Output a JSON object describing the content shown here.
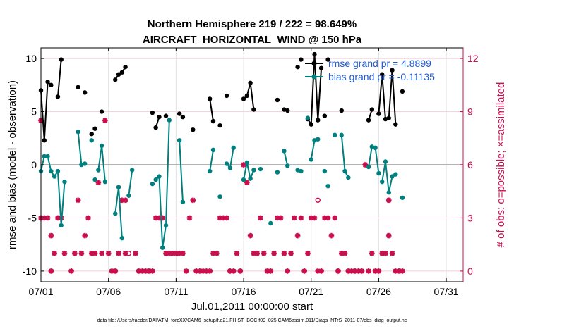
{
  "chart_data": {
    "type": "line",
    "title": "Northern Hemisphere 219 / 222 = 98.649%",
    "subtitle": "AIRCRAFT_HORIZONTAL_WIND @ 150 hPa",
    "xlabel": "Jul.01,2011 00:00:00 start",
    "ylabel": "rmse and bias (model - observation)",
    "y2label": "# of obs: o=possible; ×=assimilated",
    "xlim": [
      0,
      31.25
    ],
    "ylim": [
      -11,
      11
    ],
    "y2lim": [
      -0.6,
      12.6
    ],
    "xticks": [
      0,
      5,
      10,
      15,
      20,
      25,
      30
    ],
    "xtick_labels": [
      "07/01",
      "07/06",
      "07/11",
      "07/16",
      "07/21",
      "07/26",
      "07/31"
    ],
    "yticks": [
      10,
      5,
      0,
      -5,
      -10
    ],
    "ytick_labels": [
      "10",
      "5",
      "0",
      "-5",
      "-10"
    ],
    "y2ticks": [
      12,
      9,
      6,
      3,
      0
    ],
    "y2tick_labels": [
      "12",
      "9",
      "6",
      "3",
      "0"
    ],
    "grid": true,
    "zero_line": 0,
    "legend_position": "top-right",
    "colors": {
      "rmse": "#000000",
      "bias": "#007f7f",
      "count": "#c8104e",
      "legend_text": "#1f5bd8",
      "zero": "#b4b4b4"
    },
    "series": [
      {
        "name": "rmse grand pr = 4.8899",
        "axis": "left",
        "segments": [
          [
            [
              0,
              7.0
            ],
            [
              0.25,
              2.3
            ],
            [
              0.5,
              7.8
            ],
            [
              0.75,
              7.5
            ]
          ],
          [
            [
              1.25,
              6.4
            ],
            [
              1.5,
              9.9
            ]
          ],
          [
            [
              2.75,
              7.3
            ]
          ],
          [
            [
              3.25,
              6.8
            ]
          ],
          [
            [
              3.75,
              2.9
            ]
          ],
          [
            [
              4.0,
              3.4
            ]
          ],
          [
            [
              4.5,
              5.0
            ]
          ],
          [
            [
              5.5,
              8.0
            ],
            [
              5.75,
              8.5
            ],
            [
              6.0,
              8.7
            ],
            [
              6.25,
              9.2
            ]
          ],
          [
            [
              8.25,
              4.9
            ]
          ],
          [
            [
              8.5,
              3.5
            ],
            [
              8.75,
              4.5
            ]
          ],
          [
            [
              9.25,
              4.6
            ]
          ],
          [
            [
              10.25,
              4.8
            ]
          ],
          [
            [
              10.5,
              4.5
            ]
          ],
          [
            [
              11.25,
              3.3
            ]
          ],
          [
            [
              12.5,
              6.2
            ],
            [
              12.75,
              4.1
            ]
          ],
          [
            [
              13.25,
              3.7
            ]
          ],
          [
            [
              13.75,
              6.5
            ]
          ],
          [
            [
              15.0,
              6.2
            ],
            [
              15.25,
              6.5
            ],
            [
              15.5,
              7.7
            ],
            [
              15.75,
              5.2
            ]
          ],
          [
            [
              17.5,
              6.1
            ]
          ],
          [
            [
              18.0,
              5.2
            ]
          ],
          [
            [
              18.25,
              5.1
            ]
          ],
          [
            [
              19.0,
              9.2
            ]
          ],
          [
            [
              19.25,
              9.9
            ]
          ],
          [
            [
              19.75,
              4.3
            ],
            [
              20.0,
              3.8
            ],
            [
              20.25,
              10.4
            ],
            [
              20.5,
              4.2
            ],
            [
              20.75,
              9.1
            ]
          ],
          [
            [
              21.0,
              4.6
            ]
          ],
          [
            [
              21.25,
              9.9
            ]
          ],
          [
            [
              22.25,
              5.1
            ]
          ],
          [
            [
              24.25,
              4.2
            ],
            [
              24.5,
              5.2
            ]
          ],
          [
            [
              25.0,
              4.8
            ],
            [
              25.25,
              8.5
            ],
            [
              25.5,
              4.3
            ],
            [
              25.75,
              4.4
            ],
            [
              26.0,
              8.9
            ],
            [
              26.25,
              3.8
            ]
          ],
          [
            [
              26.75,
              6.9
            ]
          ]
        ]
      },
      {
        "name": "bias grand pr = -0.11135",
        "axis": "left",
        "segments": [
          [
            [
              0,
              -0.6
            ],
            [
              0.25,
              0.8
            ],
            [
              0.5,
              0.8
            ],
            [
              0.75,
              -0.6
            ],
            [
              1.0,
              -1.1
            ],
            [
              1.25,
              -0.6
            ],
            [
              1.5,
              -5.7
            ],
            [
              1.75,
              -1.6
            ]
          ],
          [
            [
              2.75,
              3.1
            ],
            [
              3.0,
              0.0
            ],
            [
              3.25,
              0.1
            ]
          ],
          [
            [
              3.75,
              2.3
            ]
          ],
          [
            [
              4.0,
              -1.4
            ]
          ],
          [
            [
              4.25,
              -0.5
            ],
            [
              4.5,
              1.8
            ],
            [
              4.75,
              -1.6
            ]
          ],
          [
            [
              5.5,
              -4.6
            ],
            [
              5.75,
              -2.1
            ],
            [
              6.0,
              -6.9
            ]
          ],
          [
            [
              6.5,
              -2.9
            ],
            [
              6.75,
              -0.5
            ]
          ],
          [
            [
              8.25,
              -1.8
            ]
          ],
          [
            [
              8.5,
              -1.4
            ],
            [
              8.75,
              -1.1
            ],
            [
              9.0,
              -7.8
            ],
            [
              9.25,
              -5.7
            ],
            [
              9.5,
              4.2
            ]
          ],
          [
            [
              10.25,
              2.3
            ],
            [
              10.5,
              -3.5
            ]
          ],
          [
            [
              12.5,
              -0.6
            ],
            [
              12.75,
              1.4
            ]
          ],
          [
            [
              13.25,
              -3.0
            ]
          ],
          [
            [
              13.75,
              0.1
            ],
            [
              14.0,
              -0.3
            ],
            [
              14.25,
              1.6
            ]
          ],
          [
            [
              15.0,
              -1.4
            ],
            [
              15.25,
              0.2
            ],
            [
              15.5,
              -1.3
            ],
            [
              15.75,
              -0.5
            ]
          ],
          [
            [
              16.25,
              -0.4
            ]
          ],
          [
            [
              17.0,
              -5.5
            ]
          ],
          [
            [
              17.5,
              -0.7
            ]
          ],
          [
            [
              18.0,
              1.3
            ],
            [
              18.25,
              -0.1
            ]
          ],
          [
            [
              19.0,
              -0.5
            ],
            [
              19.25,
              -0.6
            ]
          ],
          [
            [
              19.75,
              4.4
            ]
          ],
          [
            [
              20.0,
              0.5
            ],
            [
              20.25,
              2.3
            ],
            [
              20.5,
              2.4
            ]
          ],
          [
            [
              21.0,
              -0.6
            ]
          ],
          [
            [
              21.25,
              -2.0
            ]
          ],
          [
            [
              21.75,
              2.8
            ]
          ],
          [
            [
              22.25,
              2.8
            ],
            [
              22.5,
              -0.6
            ],
            [
              22.75,
              -1.2
            ]
          ],
          [
            [
              24.25,
              -0.2
            ],
            [
              24.5,
              1.7
            ],
            [
              24.75,
              1.6
            ],
            [
              25.0,
              -0.8
            ]
          ],
          [
            [
              25.25,
              -1.6
            ],
            [
              25.5,
              0.3
            ],
            [
              25.75,
              -2.6
            ],
            [
              26.0,
              -1.1
            ],
            [
              26.25,
              -0.9
            ]
          ],
          [
            [
              26.75,
              -3.1
            ]
          ]
        ]
      },
      {
        "name": "# obs assimilated",
        "axis": "right",
        "marker": "x",
        "points": [
          [
            0,
            8.5
          ],
          [
            0,
            3
          ],
          [
            0.25,
            3
          ],
          [
            0.5,
            3
          ],
          [
            0.75,
            2
          ],
          [
            0.75,
            0
          ],
          [
            1.0,
            1
          ],
          [
            1.25,
            3
          ],
          [
            1.5,
            3
          ],
          [
            1.75,
            1
          ],
          [
            2.25,
            0
          ],
          [
            2.5,
            1
          ],
          [
            2.75,
            4
          ],
          [
            3.0,
            1
          ],
          [
            3.25,
            2
          ],
          [
            3.5,
            3
          ],
          [
            3.75,
            1
          ],
          [
            4.0,
            1
          ],
          [
            4.25,
            5
          ],
          [
            4.5,
            1
          ],
          [
            4.75,
            8.5
          ],
          [
            5.0,
            1
          ],
          [
            5.25,
            0
          ],
          [
            5.5,
            0
          ],
          [
            5.75,
            1
          ],
          [
            6.0,
            4
          ],
          [
            6.25,
            4
          ],
          [
            6.25,
            1
          ],
          [
            7.0,
            1
          ],
          [
            7.25,
            0
          ],
          [
            7.5,
            0
          ],
          [
            7.75,
            0
          ],
          [
            8.0,
            0
          ],
          [
            8.25,
            0
          ],
          [
            8.5,
            3
          ],
          [
            8.75,
            3
          ],
          [
            9.0,
            3
          ],
          [
            9.25,
            1
          ],
          [
            9.5,
            1
          ],
          [
            9.75,
            1
          ],
          [
            10.0,
            1
          ],
          [
            10.25,
            1
          ],
          [
            10.5,
            1
          ],
          [
            10.75,
            0
          ],
          [
            11.0,
            3
          ],
          [
            11.25,
            4
          ],
          [
            11.5,
            0
          ],
          [
            11.75,
            0
          ],
          [
            12.0,
            0
          ],
          [
            12.25,
            0
          ],
          [
            12.5,
            0
          ],
          [
            12.75,
            1
          ],
          [
            13.0,
            1
          ],
          [
            13.25,
            3
          ],
          [
            13.5,
            3
          ],
          [
            13.75,
            3
          ],
          [
            14.0,
            0
          ],
          [
            14.25,
            0
          ],
          [
            14.5,
            1
          ],
          [
            14.75,
            0
          ],
          [
            15.0,
            6
          ],
          [
            15.25,
            5
          ],
          [
            15.5,
            2
          ],
          [
            15.75,
            1
          ],
          [
            16.0,
            1
          ],
          [
            16.25,
            3
          ],
          [
            16.5,
            1
          ],
          [
            16.75,
            0
          ],
          [
            17.0,
            0
          ],
          [
            17.25,
            1
          ],
          [
            17.5,
            3
          ],
          [
            17.75,
            3
          ],
          [
            18.0,
            1
          ],
          [
            18.25,
            0
          ],
          [
            18.5,
            1
          ],
          [
            18.75,
            3
          ],
          [
            19.0,
            2
          ],
          [
            19.25,
            3
          ],
          [
            19.5,
            0
          ],
          [
            19.75,
            1
          ],
          [
            20.0,
            3
          ],
          [
            20.25,
            3
          ],
          [
            20.5,
            0
          ],
          [
            20.75,
            0
          ],
          [
            21.0,
            3
          ],
          [
            21.25,
            3
          ],
          [
            21.5,
            2
          ],
          [
            21.75,
            3
          ],
          [
            22.0,
            0
          ],
          [
            22.25,
            1
          ],
          [
            22.5,
            1
          ],
          [
            22.75,
            0
          ],
          [
            23.0,
            0
          ],
          [
            23.25,
            0
          ],
          [
            23.5,
            0
          ],
          [
            23.75,
            0
          ],
          [
            24.0,
            6
          ],
          [
            24.25,
            0
          ],
          [
            24.5,
            1
          ],
          [
            24.75,
            0
          ],
          [
            25.0,
            0
          ],
          [
            25.25,
            1
          ],
          [
            25.5,
            1
          ],
          [
            25.75,
            2
          ],
          [
            25.75,
            4
          ],
          [
            26.0,
            1
          ],
          [
            26.25,
            0
          ],
          [
            26.5,
            0
          ],
          [
            26.75,
            0
          ]
        ]
      },
      {
        "name": "# obs possible",
        "axis": "right",
        "marker": "o",
        "points": [
          [
            6.5,
            1
          ],
          [
            20.5,
            4
          ]
        ]
      }
    ]
  },
  "footer_text": "data file: /Users/raeder/DAI/ATM_forcXX/CAM6_setup/f.e21.FHIST_BGC.f09_025.CAM6assim.011/Diags_NTrS_2011-07/obs_diag_output.nc"
}
